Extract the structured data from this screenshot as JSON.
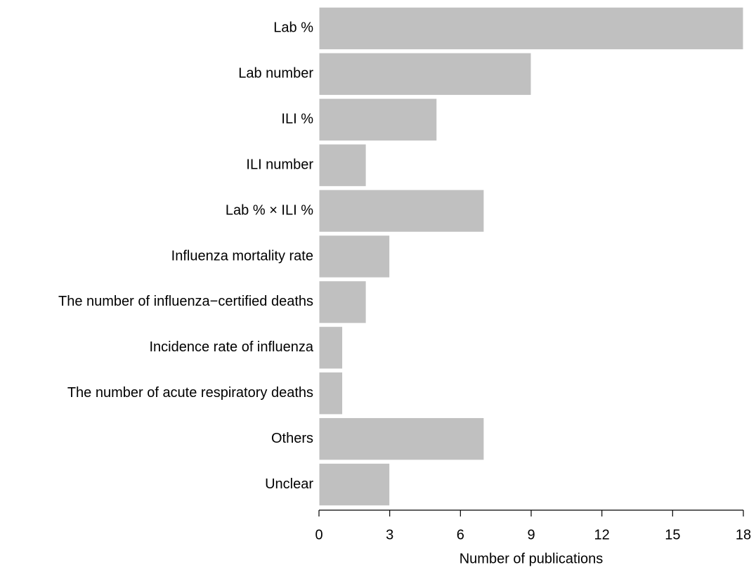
{
  "chart_data": {
    "type": "bar",
    "orientation": "horizontal",
    "xlabel": "Number of publications",
    "categories": [
      "Lab %",
      "Lab number",
      "ILI %",
      "ILI number",
      "Lab % × ILI %",
      "Influenza mortality rate",
      "The number of influenza−certified deaths",
      "Incidence rate of influenza",
      "The number of acute respiratory deaths",
      "Others",
      "Unclear"
    ],
    "values": [
      18,
      9,
      5,
      2,
      7,
      3,
      2,
      1,
      1,
      7,
      3
    ],
    "color": "#c0c0c0",
    "xlim": [
      0,
      18
    ],
    "xticks": [
      0,
      3,
      6,
      9,
      12,
      15,
      18
    ],
    "grid": false
  }
}
